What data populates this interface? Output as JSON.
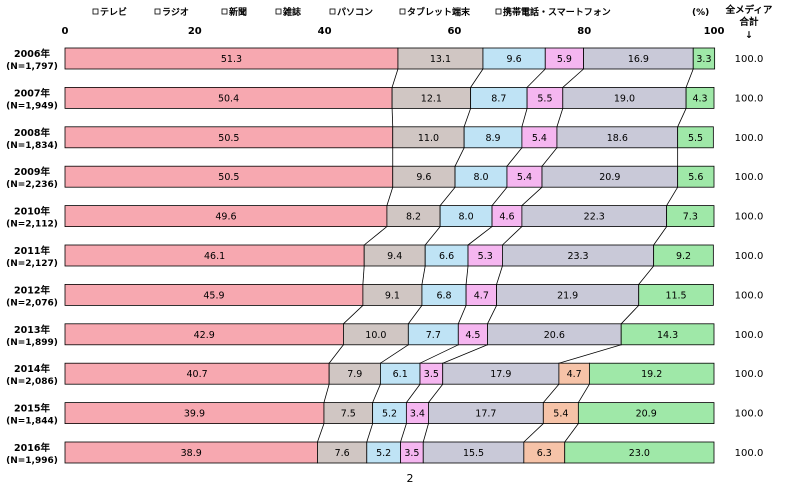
{
  "chart_data": {
    "type": "bar",
    "stacked": "horizontal-100-percent",
    "unit_label": "(%)",
    "xlim": [
      0,
      100
    ],
    "x_ticks": [
      "0",
      "20",
      "40",
      "60",
      "80",
      "100"
    ],
    "categories": [
      [
        "2006年",
        "(N=1,797)"
      ],
      [
        "2007年",
        "(N=1,949)"
      ],
      [
        "2008年",
        "(N=1,834)"
      ],
      [
        "2009年",
        "(N=2,236)"
      ],
      [
        "2010年",
        "(N=2,112)"
      ],
      [
        "2011年",
        "(N=2,127)"
      ],
      [
        "2012年",
        "(N=2,076)"
      ],
      [
        "2013年",
        "(N=1,899)"
      ],
      [
        "2014年",
        "(N=2,086)"
      ],
      [
        "2015年",
        "(N=1,844)"
      ],
      [
        "2016年",
        "(N=1,996)"
      ]
    ],
    "series": [
      {
        "name": "テレビ",
        "color": "#f7a8b0",
        "values": [
          51.3,
          50.4,
          50.5,
          50.5,
          49.6,
          46.1,
          45.9,
          42.9,
          40.7,
          39.9,
          38.9
        ]
      },
      {
        "name": "ラジオ",
        "color": "#a39690",
        "values": [
          0,
          0,
          0,
          0,
          0,
          0,
          0,
          0,
          0,
          0,
          0
        ]
      },
      {
        "name": "新聞",
        "color": "#d0c6c3",
        "values": [
          13.1,
          12.1,
          11.0,
          9.6,
          8.2,
          9.4,
          9.1,
          10.0,
          7.9,
          7.5,
          7.6
        ]
      },
      {
        "name": "雑誌",
        "color": "#bfe3f5",
        "values": [
          9.6,
          8.7,
          8.9,
          8.0,
          8.0,
          6.6,
          6.8,
          7.7,
          6.1,
          5.2,
          5.2
        ]
      },
      {
        "name": "パソコン",
        "color": "#f5b6f0",
        "values": [
          5.9,
          5.5,
          5.4,
          5.4,
          4.6,
          5.3,
          4.7,
          4.5,
          3.5,
          3.4,
          3.5
        ]
      },
      {
        "name": "タブレット端末",
        "color": "#c9c9d8",
        "values": [
          16.9,
          19.0,
          18.6,
          20.9,
          22.3,
          23.3,
          21.9,
          20.6,
          17.9,
          17.7,
          15.5
        ]
      },
      {
        "name": "携帯電話・スマートフォン",
        "color": "#9fe8a8",
        "values": [
          3.3,
          4.3,
          5.5,
          5.6,
          7.3,
          9.2,
          11.5,
          14.3,
          19.2,
          20.9,
          23.0
        ]
      }
    ],
    "extra_series_2014_2016": {
      "name": "タブレット端末",
      "color": "#f6c3a8",
      "values": [
        0,
        0,
        0,
        0,
        0,
        0,
        0,
        0,
        4.7,
        5.4,
        6.3
      ]
    },
    "totals_header": [
      "全メディア",
      "合計"
    ],
    "totals_arrow": "↓",
    "totals": [
      "100.0",
      "100.0",
      "100.0",
      "100.0",
      "100.0",
      "100.0",
      "100.0",
      "100.0",
      "100.0",
      "100.0",
      "100.0"
    ],
    "legend": [
      "テレビ",
      "ラジオ",
      "新聞",
      "雑誌",
      "パソコン",
      "タブレット端末",
      "携帯電話・スマートフォン"
    ],
    "legend_placement": "top",
    "grid": false
  },
  "page_number": "2"
}
